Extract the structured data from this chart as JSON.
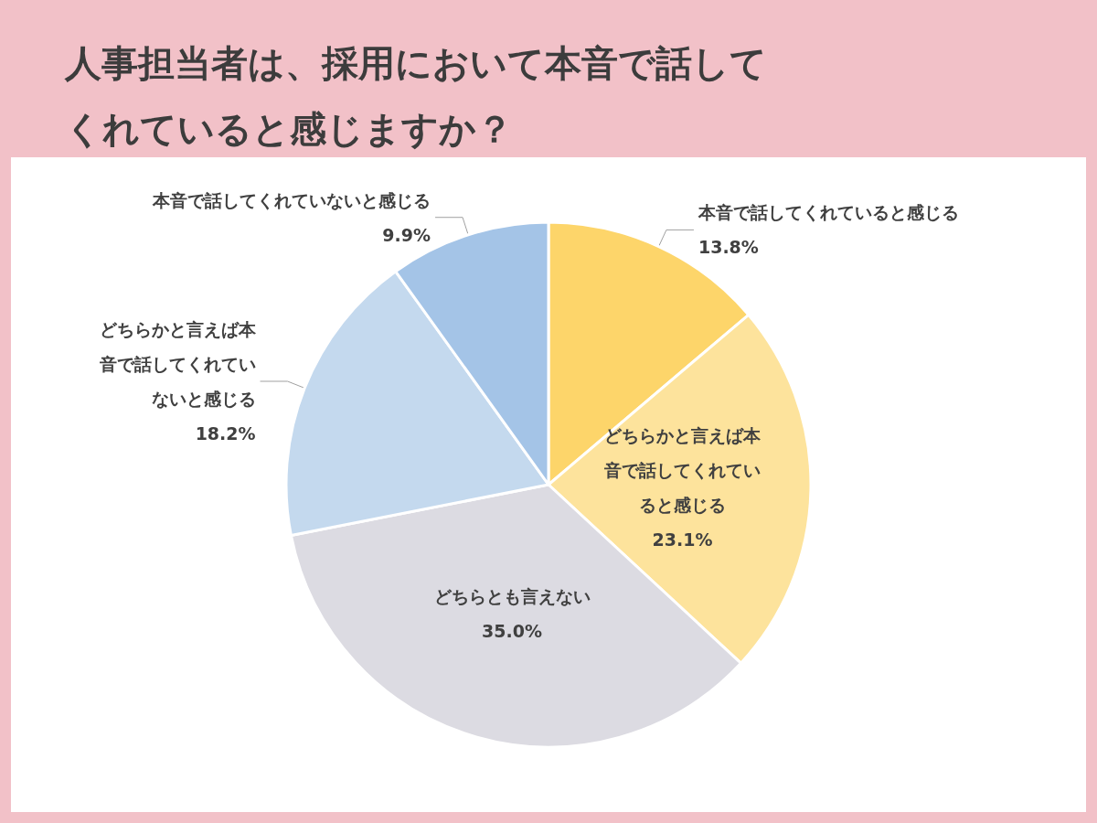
{
  "chart_data": {
    "type": "pie",
    "title": "人事担当者は、採用において本音で話してくれていると感じますか？",
    "categories": [
      "本音で話してくれていると感じる",
      "どちらかと言えば本音で話してくれていると感じる",
      "どちらとも言えない",
      "どちらかと言えば本音で話してくれていないと感じる",
      "本音で話してくれていないと感じる"
    ],
    "values": [
      13.8,
      23.1,
      35.0,
      18.2,
      9.9
    ],
    "value_labels": [
      "13.8%",
      "23.1%",
      "35.0%",
      "18.2%",
      "9.9%"
    ],
    "colors": [
      "#fdd56a",
      "#fde39c",
      "#dcdbe2",
      "#c4d9ee",
      "#a4c4e7"
    ]
  }
}
